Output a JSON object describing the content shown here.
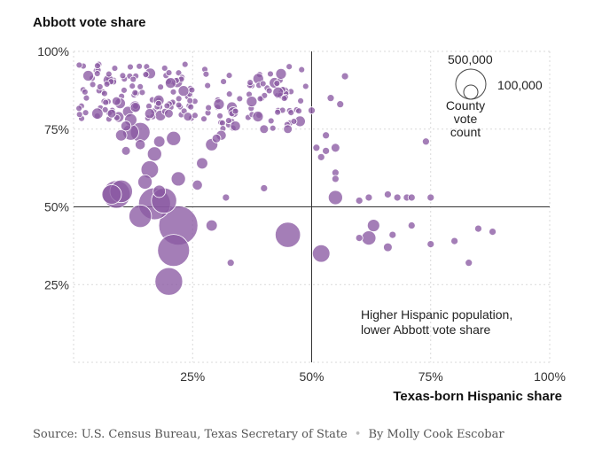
{
  "chart_data": {
    "type": "scatter",
    "ylabel": "Abbott vote share",
    "xlabel": "Texas-born Hispanic share",
    "xlim": [
      0,
      100
    ],
    "ylim": [
      0,
      100
    ],
    "x_ticks": [
      "25%",
      "50%",
      "75%",
      "100%"
    ],
    "y_ticks": [
      "100%",
      "75%",
      "50%",
      "25%"
    ],
    "reference_lines": {
      "x": 50,
      "y": 50
    },
    "grid": true,
    "point_color": "#8a5aa3",
    "legend": {
      "title": [
        "County",
        "vote count"
      ],
      "sizes": [
        500000,
        100000
      ],
      "labels": [
        "500,000",
        "100,000"
      ]
    },
    "annotation": [
      "Higher Hispanic population,",
      "lower Abbott vote share"
    ],
    "points": [
      [
        9,
        54,
        3
      ],
      [
        10,
        55,
        2
      ],
      [
        8,
        54,
        1.5
      ],
      [
        17,
        51,
        4
      ],
      [
        19,
        52,
        2.5
      ],
      [
        14,
        47,
        2
      ],
      [
        22,
        44,
        6
      ],
      [
        21,
        36,
        4
      ],
      [
        20,
        26,
        3
      ],
      [
        45,
        41,
        2.5
      ],
      [
        52,
        35,
        1.2
      ],
      [
        55,
        53,
        0.8
      ],
      [
        62,
        40,
        0.8
      ],
      [
        63,
        44,
        0.6
      ],
      [
        66,
        37,
        0.3
      ],
      [
        14,
        74,
        1.5
      ],
      [
        12,
        74,
        1
      ],
      [
        16,
        62,
        1.2
      ],
      [
        17,
        67,
        0.8
      ],
      [
        15,
        58,
        0.8
      ],
      [
        18,
        55,
        0.6
      ],
      [
        22,
        59,
        0.8
      ],
      [
        21,
        72,
        0.8
      ],
      [
        27,
        64,
        0.5
      ],
      [
        29,
        70,
        0.6
      ],
      [
        31,
        73,
        0.4
      ],
      [
        29,
        44,
        0.5
      ],
      [
        10,
        73,
        0.5
      ],
      [
        11,
        76,
        0.4
      ],
      [
        8,
        80,
        0.3
      ],
      [
        9,
        84,
        0.3
      ],
      [
        13,
        82,
        0.4
      ],
      [
        12,
        78,
        0.6
      ],
      [
        14,
        70,
        0.4
      ],
      [
        18,
        71,
        0.5
      ],
      [
        20,
        80,
        0.3
      ],
      [
        5,
        80,
        0.5
      ],
      [
        16,
        80,
        0.4
      ],
      [
        11,
        68,
        0.3
      ],
      [
        24,
        79,
        0.3
      ],
      [
        30,
        72,
        0.3
      ],
      [
        34,
        76,
        0.4
      ],
      [
        40,
        75,
        0.3
      ],
      [
        45,
        75,
        0.3
      ],
      [
        53,
        73,
        0.2
      ],
      [
        55,
        69,
        0.3
      ],
      [
        55,
        61,
        0.2
      ],
      [
        55,
        59,
        0.2
      ],
      [
        60,
        52,
        0.2
      ],
      [
        62,
        53,
        0.2
      ],
      [
        66,
        54,
        0.2
      ],
      [
        68,
        53,
        0.2
      ],
      [
        70,
        53,
        0.2
      ],
      [
        71,
        53,
        0.2
      ],
      [
        75,
        53,
        0.2
      ],
      [
        71,
        44,
        0.2
      ],
      [
        75,
        38,
        0.2
      ],
      [
        80,
        39,
        0.2
      ],
      [
        83,
        32,
        0.2
      ],
      [
        85,
        43,
        0.2
      ],
      [
        88,
        42,
        0.2
      ],
      [
        74,
        71,
        0.2
      ],
      [
        57,
        92,
        0.2
      ],
      [
        40,
        56,
        0.2
      ],
      [
        33,
        32,
        0.2
      ],
      [
        32,
        53,
        0.2
      ],
      [
        26,
        57,
        0.4
      ],
      [
        51,
        69,
        0.2
      ],
      [
        53,
        68,
        0.2
      ],
      [
        54,
        85,
        0.2
      ],
      [
        50,
        81,
        0.2
      ],
      [
        56,
        83,
        0.2
      ],
      [
        52,
        66,
        0.2
      ],
      [
        60,
        40,
        0.2
      ],
      [
        67,
        41,
        0.2
      ]
    ]
  },
  "source": {
    "text": "Source: U.S. Census Bureau, Texas Secretary of State",
    "sep": "•",
    "byline": "By Molly Cook Escobar"
  }
}
